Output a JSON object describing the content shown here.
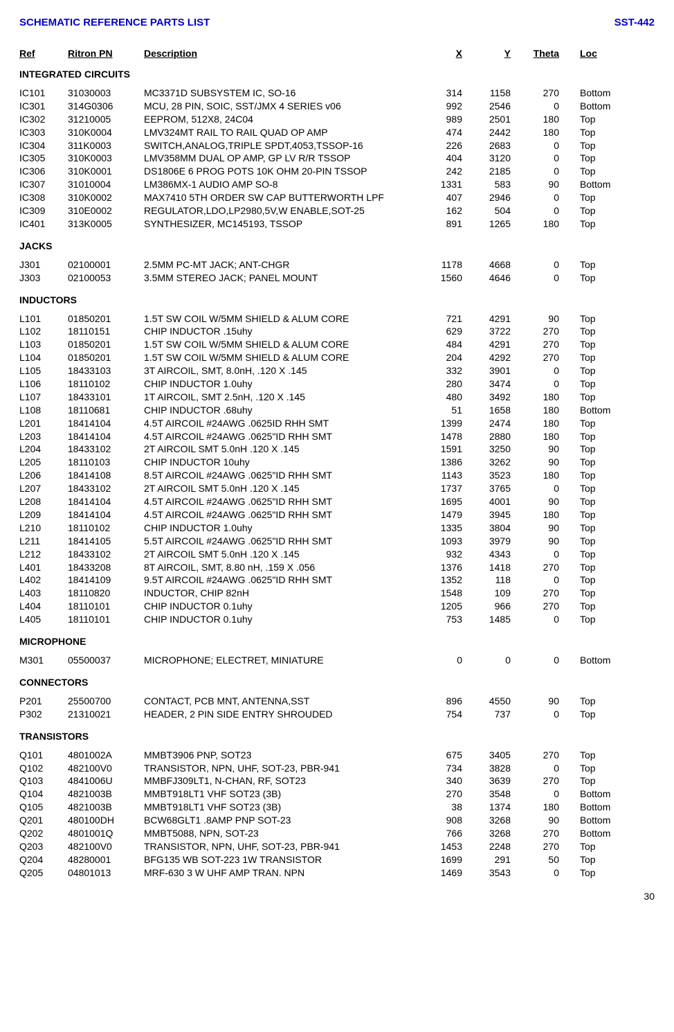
{
  "header": {
    "title": "SCHEMATIC REFERENCE PARTS LIST",
    "doc_id": "SST-442",
    "title_color": "#0000cc"
  },
  "columns": [
    "Ref",
    "Ritron PN",
    "Description",
    "X",
    "Y",
    "Theta",
    "Loc"
  ],
  "page_number": "30",
  "sections": [
    {
      "title": "INTEGRATED CIRCUITS",
      "rows": [
        [
          "IC101",
          "31030003",
          "MC3371D SUBSYSTEM IC, SO-16",
          "314",
          "1158",
          "270",
          "Bottom"
        ],
        [
          "IC301",
          "314G0306",
          "MCU, 28 PIN, SOIC, SST/JMX 4 SERIES v06",
          "992",
          "2546",
          "0",
          "Bottom"
        ],
        [
          "IC302",
          "31210005",
          "EEPROM, 512X8, 24C04",
          "989",
          "2501",
          "180",
          "Top"
        ],
        [
          "IC303",
          "310K0004",
          "LMV324MT RAIL TO RAIL QUAD OP AMP",
          "474",
          "2442",
          "180",
          "Top"
        ],
        [
          "IC304",
          "311K0003",
          "SWITCH,ANALOG,TRIPLE SPDT,4053,TSSOP-16",
          "226",
          "2683",
          "0",
          "Top"
        ],
        [
          "IC305",
          "310K0003",
          "LMV358MM DUAL OP AMP, GP LV R/R TSSOP",
          "404",
          "3120",
          "0",
          "Top"
        ],
        [
          "IC306",
          "310K0001",
          "DS1806E 6 PROG POTS 10K OHM 20-PIN TSSOP",
          "242",
          "2185",
          "0",
          "Top"
        ],
        [
          "IC307",
          "31010004",
          "LM386MX-1 AUDIO AMP SO-8",
          "1331",
          "583",
          "90",
          "Bottom"
        ],
        [
          "IC308",
          "310K0002",
          "MAX7410 5TH ORDER SW CAP BUTTERWORTH LPF",
          "407",
          "2946",
          "0",
          "Top"
        ],
        [
          "IC309",
          "310E0002",
          "REGULATOR,LDO,LP2980,5V,W ENABLE,SOT-25",
          "162",
          "504",
          "0",
          "Top"
        ],
        [
          "IC401",
          "313K0005",
          "SYNTHESIZER, MC145193, TSSOP",
          "891",
          "1265",
          "180",
          "Top"
        ]
      ]
    },
    {
      "title": "JACKS",
      "rows": [
        [
          "J301",
          "02100001",
          "2.5MM PC-MT JACK; ANT-CHGR",
          "1178",
          "4668",
          "0",
          "Top"
        ],
        [
          "J303",
          "02100053",
          "3.5MM STEREO JACK; PANEL MOUNT",
          "1560",
          "4646",
          "0",
          "Top"
        ]
      ]
    },
    {
      "title": "INDUCTORS",
      "rows": [
        [
          "L101",
          "01850201",
          "1.5T SW COIL W/5MM SHIELD & ALUM CORE",
          "721",
          "4291",
          "90",
          "Top"
        ],
        [
          "L102",
          "18110151",
          "CHIP INDUCTOR .15uhy",
          "629",
          "3722",
          "270",
          "Top"
        ],
        [
          "L103",
          "01850201",
          "1.5T SW COIL W/5MM SHIELD & ALUM CORE",
          "484",
          "4291",
          "270",
          "Top"
        ],
        [
          "L104",
          "01850201",
          "1.5T SW COIL W/5MM SHIELD & ALUM CORE",
          "204",
          "4292",
          "270",
          "Top"
        ],
        [
          "L105",
          "18433103",
          "3T AIRCOIL, SMT, 8.0nH, .120 X .145",
          "332",
          "3901",
          "0",
          "Top"
        ],
        [
          "L106",
          "18110102",
          "CHIP INDUCTOR 1.0uhy",
          "280",
          "3474",
          "0",
          "Top"
        ],
        [
          "L107",
          "18433101",
          "1T AIRCOIL, SMT 2.5nH, .120 X .145",
          "480",
          "3492",
          "180",
          "Top"
        ],
        [
          "L108",
          "18110681",
          "CHIP INDUCTOR .68uhy",
          "51",
          "1658",
          "180",
          "Bottom"
        ],
        [
          "L201",
          "18414104",
          "4.5T AIRCOIL #24AWG .0625ID RHH SMT",
          "1399",
          "2474",
          "180",
          "Top"
        ],
        [
          "L203",
          "18414104",
          "4.5T AIRCOIL #24AWG .0625\"ID RHH SMT",
          "1478",
          "2880",
          "180",
          "Top"
        ],
        [
          "L204",
          "18433102",
          "2T AIRCOIL SMT 5.0nH .120 X .145",
          "1591",
          "3250",
          "90",
          "Top"
        ],
        [
          "L205",
          "18110103",
          "CHIP INDUCTOR 10uhy",
          "1386",
          "3262",
          "90",
          "Top"
        ],
        [
          "L206",
          "18414108",
          "8.5T AIRCOIL #24AWG .0625\"ID RHH SMT",
          "1143",
          "3523",
          "180",
          "Top"
        ],
        [
          "L207",
          "18433102",
          "2T AIRCOIL SMT 5.0nH .120 X .145",
          "1737",
          "3765",
          "0",
          "Top"
        ],
        [
          "L208",
          "18414104",
          "4.5T AIRCOIL #24AWG .0625\"ID RHH SMT",
          "1695",
          "4001",
          "90",
          "Top"
        ],
        [
          "L209",
          "18414104",
          "4.5T AIRCOIL #24AWG .0625\"ID RHH SMT",
          "1479",
          "3945",
          "180",
          "Top"
        ],
        [
          "L210",
          "18110102",
          "CHIP INDUCTOR 1.0uhy",
          "1335",
          "3804",
          "90",
          "Top"
        ],
        [
          "L211",
          "18414105",
          "5.5T AIRCOIL #24AWG .0625\"ID RHH SMT",
          "1093",
          "3979",
          "90",
          "Top"
        ],
        [
          "L212",
          "18433102",
          "2T AIRCOIL SMT 5.0nH .120 X .145",
          "932",
          "4343",
          "0",
          "Top"
        ],
        [
          "L401",
          "18433208",
          "8T AIRCOIL, SMT, 8.80 nH, .159 X .056",
          "1376",
          "1418",
          "270",
          "Top"
        ],
        [
          "L402",
          "18414109",
          "9.5T AIRCOIL #24AWG .0625\"ID RHH SMT",
          "1352",
          "118",
          "0",
          "Top"
        ],
        [
          "L403",
          "18110820",
          "INDUCTOR, CHIP 82nH",
          "1548",
          "109",
          "270",
          "Top"
        ],
        [
          "L404",
          "18110101",
          "CHIP INDUCTOR 0.1uhy",
          "1205",
          "966",
          "270",
          "Top"
        ],
        [
          "L405",
          "18110101",
          "CHIP INDUCTOR 0.1uhy",
          "753",
          "1485",
          "0",
          "Top"
        ]
      ]
    },
    {
      "title": "MICROPHONE",
      "rows": [
        [
          "M301",
          "05500037",
          "MICROPHONE; ELECTRET, MINIATURE",
          "0",
          "0",
          "0",
          "Bottom"
        ]
      ]
    },
    {
      "title": "CONNECTORS",
      "rows": [
        [
          "P201",
          "25500700",
          "CONTACT, PCB MNT, ANTENNA,SST",
          "896",
          "4550",
          "90",
          "Top"
        ],
        [
          "P302",
          "21310021",
          "HEADER, 2 PIN SIDE ENTRY SHROUDED",
          "754",
          "737",
          "0",
          "Top"
        ]
      ]
    },
    {
      "title": "TRANSISTORS",
      "rows": [
        [
          "Q101",
          "4801002A",
          "MMBT3906 PNP, SOT23",
          "675",
          "3405",
          "270",
          "Top"
        ],
        [
          "Q102",
          "482100V0",
          "TRANSISTOR, NPN, UHF, SOT-23, PBR-941",
          "734",
          "3828",
          "0",
          "Top"
        ],
        [
          "Q103",
          "4841006U",
          "MMBFJ309LT1, N-CHAN, RF, SOT23",
          "340",
          "3639",
          "270",
          "Top"
        ],
        [
          "Q104",
          "4821003B",
          "MMBT918LT1 VHF SOT23 (3B)",
          "270",
          "3548",
          "0",
          "Bottom"
        ],
        [
          "Q105",
          "4821003B",
          "MMBT918LT1 VHF SOT23 (3B)",
          "38",
          "1374",
          "180",
          "Bottom"
        ],
        [
          "Q201",
          "480100DH",
          "BCW68GLT1 .8AMP PNP SOT-23",
          "908",
          "3268",
          "90",
          "Bottom"
        ],
        [
          "Q202",
          "4801001Q",
          "MMBT5088, NPN, SOT-23",
          "766",
          "3268",
          "270",
          "Bottom"
        ],
        [
          "Q203",
          "482100V0",
          "TRANSISTOR, NPN, UHF, SOT-23, PBR-941",
          "1453",
          "2248",
          "270",
          "Top"
        ],
        [
          "Q204",
          "48280001",
          "BFG135 WB SOT-223 1W TRANSISTOR",
          "1699",
          "291",
          "50",
          "Top"
        ],
        [
          "Q205",
          "04801013",
          "MRF-630 3 W UHF AMP TRAN. NPN",
          "1469",
          "3543",
          "0",
          "Top"
        ]
      ]
    }
  ]
}
